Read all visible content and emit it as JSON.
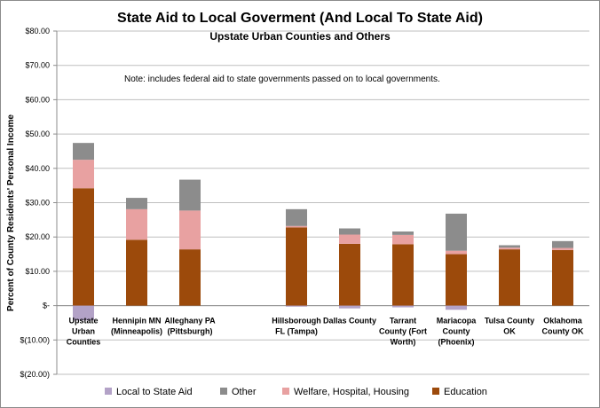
{
  "chart_data": {
    "type": "bar",
    "stacked": true,
    "title": "State Aid to Local Goverment (And Local To State Aid)",
    "subtitle": "Upstate Urban Counties and Others",
    "note": "Note:  includes federal aid to state governments passed on to local governments.",
    "ylabel": "Percent of County Residents' Personal Income",
    "xlabel": "",
    "ylim": [
      -20,
      80
    ],
    "yticks": [
      80,
      70,
      60,
      50,
      40,
      30,
      20,
      10,
      0,
      -10,
      -20
    ],
    "ytick_labels": [
      "$80.00",
      "$70.00",
      "$60.00",
      "$50.00",
      "$40.00",
      "$30.00",
      "$20.00",
      "$10.00",
      "$-",
      "$(10.00)",
      "$(20.00)"
    ],
    "grid": true,
    "legend_position": "bottom",
    "categories": [
      [
        "Upstate",
        "Urban",
        "Counties"
      ],
      [
        "Hennipin MN",
        "(Minneapolis)"
      ],
      [
        "Alleghany PA",
        "(Pittsburgh)"
      ],
      [],
      [
        "Hillsborough",
        "FL (Tampa)"
      ],
      [
        "Dallas County"
      ],
      [
        "Tarrant",
        "County (Fort",
        "Worth)"
      ],
      [
        "Mariacopa",
        "County",
        "(Phoenix)"
      ],
      [
        "Tulsa County",
        "OK"
      ],
      [
        "Oklahoma",
        "County OK"
      ]
    ],
    "series": [
      {
        "name": "Education",
        "color": "#9c4a0b",
        "values": [
          34.2,
          19.2,
          16.4,
          0,
          22.8,
          18.0,
          17.9,
          15.0,
          16.4,
          16.2
        ]
      },
      {
        "name": "Welfare, Hospital, Housing",
        "color": "#e8a1a1",
        "values": [
          8.3,
          8.9,
          11.3,
          0,
          0.4,
          2.7,
          2.7,
          1.0,
          0.5,
          0.6
        ]
      },
      {
        "name": "Other",
        "color": "#8c8c8c",
        "values": [
          4.9,
          3.3,
          9.0,
          0,
          4.9,
          1.8,
          1.0,
          10.8,
          0.7,
          2.0
        ]
      },
      {
        "name": "Local to State  Aid",
        "color": "#b3a2c7",
        "values": [
          -4.3,
          0,
          0,
          0,
          -0.3,
          -0.8,
          -0.5,
          -1.2,
          0,
          0
        ]
      }
    ],
    "legend_order": [
      "Local to State  Aid",
      "Other",
      "Welfare, Hospital, Housing",
      "Education"
    ]
  }
}
